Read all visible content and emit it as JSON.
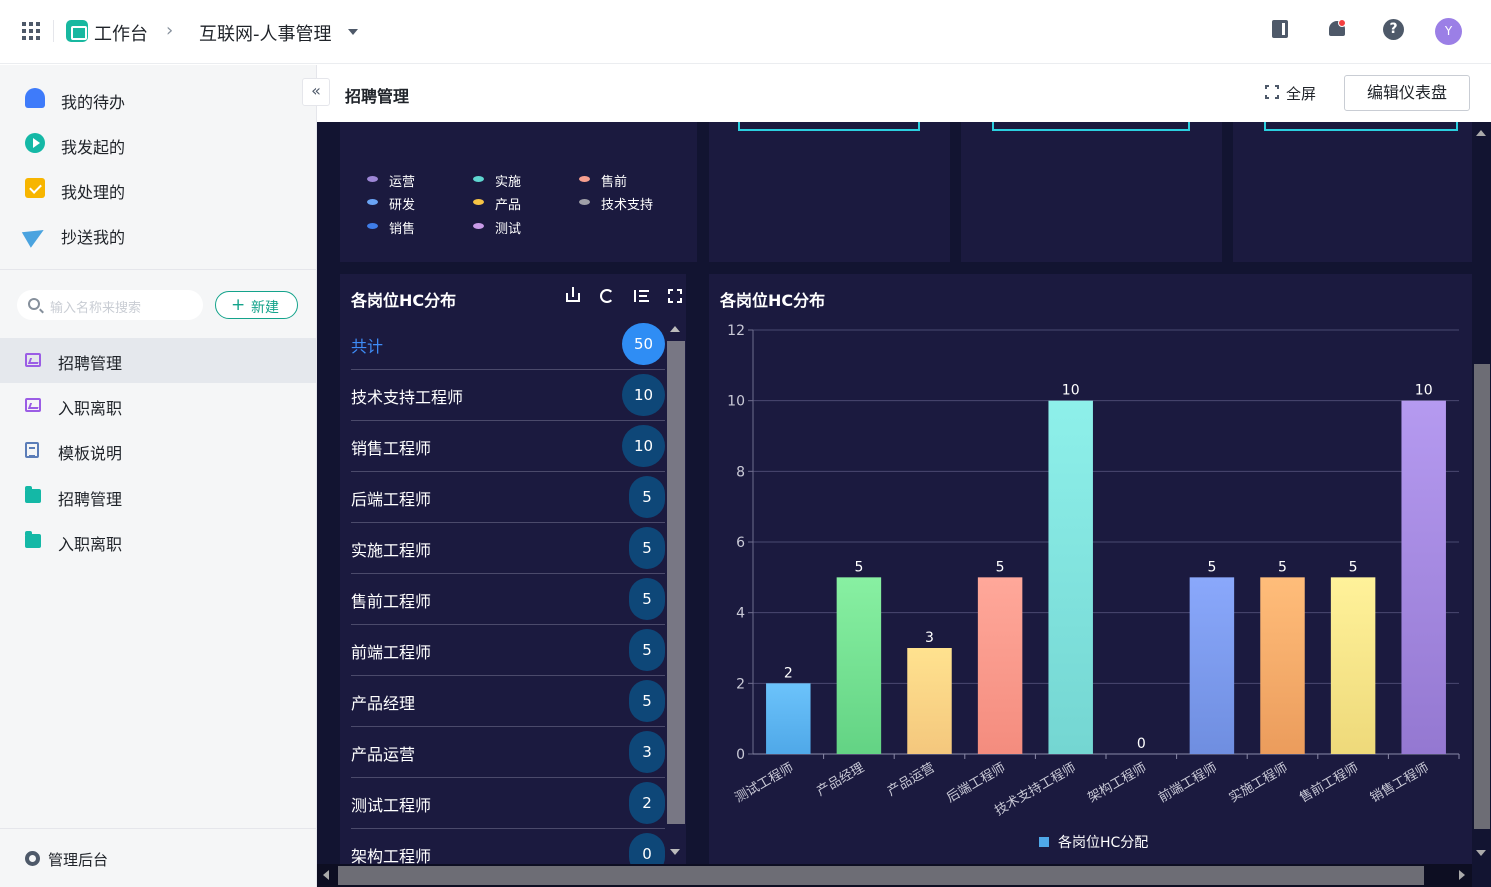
{
  "topbar": {
    "app_name": "工作台",
    "crumb_separator": "›",
    "current_app": "互联网-人事管理",
    "avatar_letter": "Y"
  },
  "sidebar": {
    "top_items": [
      {
        "label": "我的待办",
        "icon": "bell-icon"
      },
      {
        "label": "我发起的",
        "icon": "play-circle-icon"
      },
      {
        "label": "我处理的",
        "icon": "task-box-icon"
      },
      {
        "label": "抄送我的",
        "icon": "send-icon"
      }
    ],
    "search_placeholder": "输入名称来搜索",
    "new_button": "新建",
    "nav_items": [
      {
        "label": "招聘管理",
        "icon": "dashboard-icon",
        "active": true
      },
      {
        "label": "入职离职",
        "icon": "dashboard-icon",
        "active": false
      },
      {
        "label": "模板说明",
        "icon": "document-icon",
        "active": false
      },
      {
        "label": "招聘管理",
        "icon": "folder-icon",
        "active": false
      },
      {
        "label": "入职离职",
        "icon": "folder-icon",
        "active": false
      }
    ],
    "admin_label": "管理后台",
    "collapse_glyph": "«"
  },
  "header": {
    "title": "招聘管理",
    "fullscreen_label": "全屏",
    "edit_button": "编辑仪表盘"
  },
  "legend_panel": {
    "items": [
      {
        "label": "运营",
        "color": "#9d86d6"
      },
      {
        "label": "实施",
        "color": "#5fd6d0"
      },
      {
        "label": "售前",
        "color": "#f79f8f"
      },
      {
        "label": "研发",
        "color": "#6aa4f5"
      },
      {
        "label": "产品",
        "color": "#f7c445"
      },
      {
        "label": "技术支持",
        "color": "#a0a0a8"
      },
      {
        "label": "销售",
        "color": "#3f7de8"
      },
      {
        "label": "测试",
        "color": "#c99be8"
      }
    ]
  },
  "hc_list": {
    "title": "各岗位HC分布",
    "rows": [
      {
        "name": "共计",
        "value": "50",
        "total": true
      },
      {
        "name": "技术支持工程师",
        "value": "10"
      },
      {
        "name": "销售工程师",
        "value": "10"
      },
      {
        "name": "后端工程师",
        "value": "5"
      },
      {
        "name": "实施工程师",
        "value": "5"
      },
      {
        "name": "售前工程师",
        "value": "5"
      },
      {
        "name": "前端工程师",
        "value": "5"
      },
      {
        "name": "产品经理",
        "value": "5"
      },
      {
        "name": "产品运营",
        "value": "3"
      },
      {
        "name": "测试工程师",
        "value": "2"
      },
      {
        "name": "架构工程师",
        "value": "0"
      }
    ]
  },
  "hc_chart": {
    "title": "各岗位HC分布"
  },
  "chart_data": {
    "type": "bar",
    "title": "各岗位HC分布",
    "categories": [
      "测试工程师",
      "产品经理",
      "产品运营",
      "后端工程师",
      "技术支持工程师",
      "架构工程师",
      "前端工程师",
      "实施工程师",
      "售前工程师",
      "销售工程师"
    ],
    "series": [
      {
        "name": "各岗位HC分配",
        "values": [
          2,
          5,
          3,
          5,
          10,
          0,
          5,
          5,
          5,
          10
        ]
      }
    ],
    "bar_colors": [
      [
        "#6cc3fb",
        "#4fa8e8"
      ],
      [
        "#88f0a2",
        "#63d384"
      ],
      [
        "#ffe28f",
        "#f4c77d"
      ],
      [
        "#ffa89a",
        "#f48c7e"
      ],
      [
        "#8ef0ea",
        "#74d6d2"
      ],
      [
        "#cccccc",
        "#bbbbbb"
      ],
      [
        "#8aa8fb",
        "#6f8ee0"
      ],
      [
        "#ffbd7a",
        "#eb9c5c"
      ],
      [
        "#fff29a",
        "#eed97a"
      ],
      [
        "#b59af0",
        "#9478d1"
      ]
    ],
    "ylim": [
      0,
      12
    ],
    "yticks": [
      0,
      2,
      4,
      6,
      8,
      10,
      12
    ],
    "legend_position": "bottom",
    "data_labels": true,
    "grid": true
  }
}
